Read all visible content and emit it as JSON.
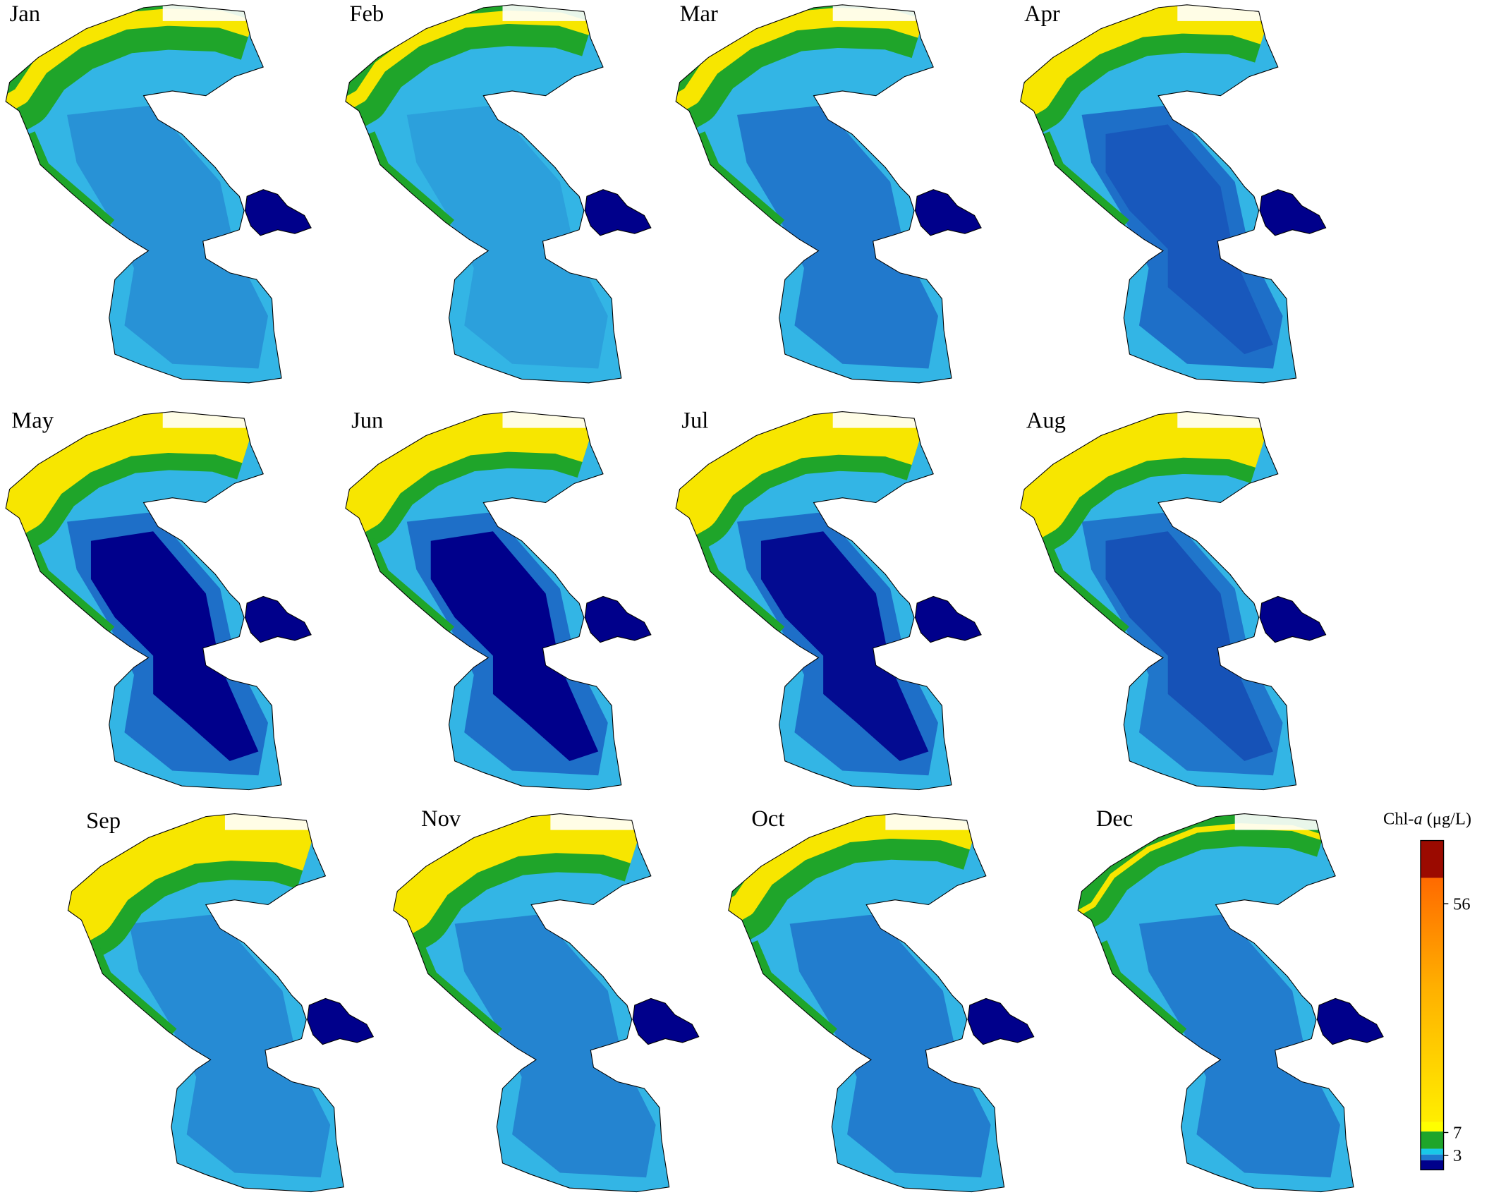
{
  "panels": [
    "Jan",
    "Feb",
    "Mar",
    "Apr",
    "May",
    "Jun",
    "Jul",
    "Aug",
    "Sep",
    "Nov",
    "Oct",
    "Dec"
  ],
  "colorbar": {
    "title": [
      "Chl-",
      "a",
      " (μg/L)"
    ],
    "ticks": [
      56,
      7,
      3
    ]
  }
}
